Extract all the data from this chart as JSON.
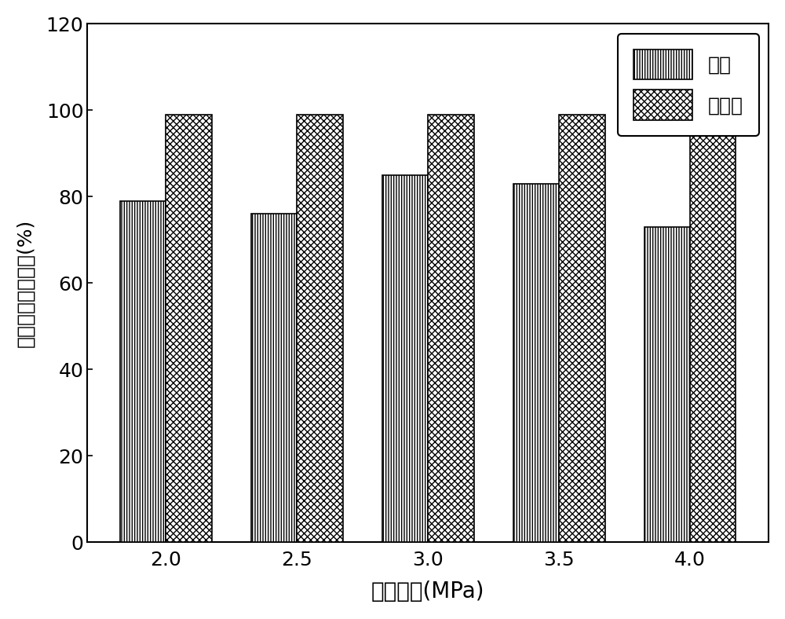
{
  "categories": [
    "2.0",
    "2.5",
    "3.0",
    "3.5",
    "4.0"
  ],
  "xlabel": "反应压力(MPa)",
  "ylabel": "分离产率和选择性(%)",
  "ylim": [
    0,
    120
  ],
  "yticks": [
    0,
    20,
    40,
    60,
    80,
    100,
    120
  ],
  "yield_values": [
    79,
    76,
    85,
    83,
    73
  ],
  "selectivity_values": [
    99,
    99,
    99,
    99,
    99
  ],
  "bar_width": 0.35,
  "legend_labels": [
    "产率",
    "选择性"
  ],
  "hatch_yield": "|||||",
  "hatch_selectivity": "xxxx",
  "bar_edge_color": "#000000",
  "bar_face_color": "#ffffff",
  "xlabel_fontsize": 20,
  "ylabel_fontsize": 18,
  "tick_fontsize": 18,
  "legend_fontsize": 18,
  "figure_facecolor": "#ffffff"
}
